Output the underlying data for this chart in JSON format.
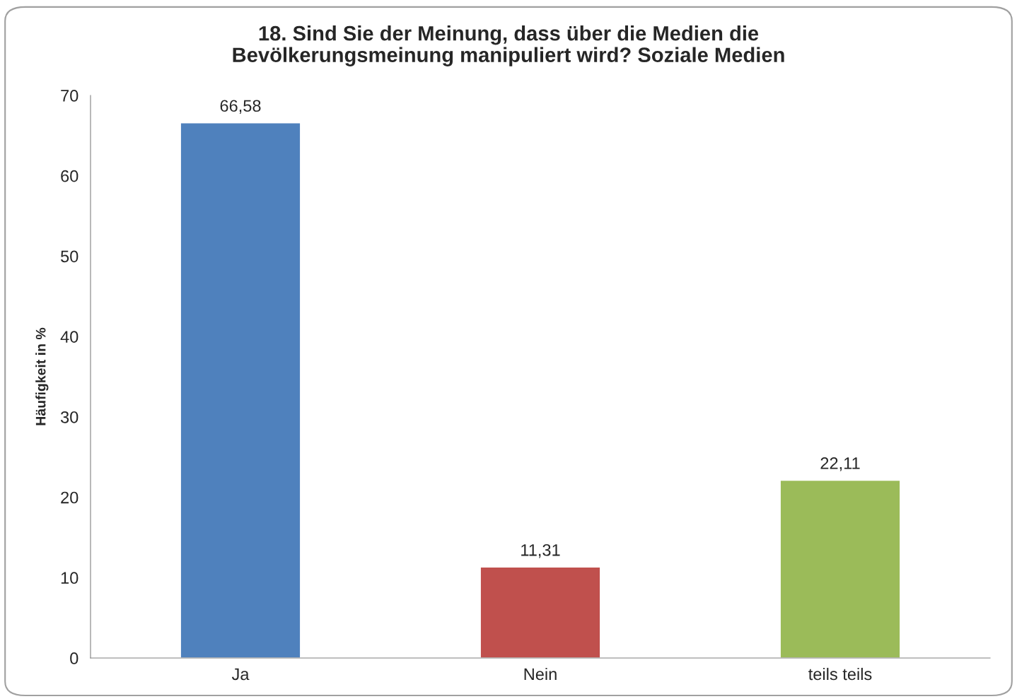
{
  "chart_data": {
    "type": "bar",
    "title": "18. Sind Sie der Meinung, dass über die Medien die\nBevölkerungsmeinung manipuliert wird? Soziale Medien",
    "ylabel": "Häufigkeit in %",
    "categories": [
      "Ja",
      "Nein",
      "teils teils"
    ],
    "values": [
      66.58,
      11.31,
      22.11
    ],
    "colors": [
      "#4f81bd",
      "#c0504d",
      "#9bbb59"
    ],
    "value_labels": [
      "66,58",
      "11,31",
      "22,11"
    ],
    "ylim": [
      0,
      70
    ],
    "yticks": [
      0,
      10,
      20,
      30,
      40,
      50,
      60,
      70
    ],
    "grid": false,
    "legend": false
  }
}
